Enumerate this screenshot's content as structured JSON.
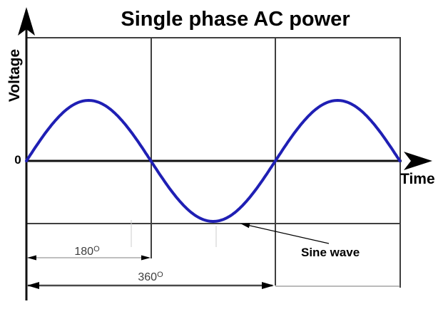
{
  "title": "Single phase AC power",
  "y_axis_label": "Voltage",
  "x_axis_label": "Time",
  "origin_label": "0",
  "labels": {
    "deg180_value": "180",
    "deg180_sup": "O",
    "deg360_value": "360",
    "deg360_sup": "O",
    "sine_wave": "Sine wave"
  },
  "colors": {
    "wave": "#1f1fb4",
    "axis": "#111111",
    "frame": "#3f3f3f",
    "dimension_line": "#999999",
    "dimension_line_heavy": "#4a4a4a",
    "extension_line": "#777777",
    "faint_tick": "#cccccc",
    "arrow": "#000000",
    "text": "#000000"
  },
  "chart_data": {
    "type": "line",
    "title": "Single phase AC power",
    "xlabel": "Time",
    "ylabel": "Voltage",
    "x_unit": "degrees",
    "x_range_deg": [
      0,
      540
    ],
    "ylim": [
      -1,
      1
    ],
    "grid": "vertical gridlines at 180 and 360 degrees only",
    "gridlines_x_deg": [
      180,
      360
    ],
    "legend": "none",
    "series": [
      {
        "name": "Sine wave",
        "function": "y = sin(x)",
        "amplitude": 1,
        "period_deg": 360,
        "points": [
          {
            "x_deg": 0,
            "y": 0
          },
          {
            "x_deg": 90,
            "y": 1
          },
          {
            "x_deg": 180,
            "y": 0
          },
          {
            "x_deg": 270,
            "y": -1
          },
          {
            "x_deg": 360,
            "y": 0
          },
          {
            "x_deg": 450,
            "y": 1
          },
          {
            "x_deg": 540,
            "y": 0
          }
        ]
      }
    ],
    "dimension_annotations": [
      {
        "label": "180°",
        "from_deg": 0,
        "to_deg": 180
      },
      {
        "label": "360°",
        "from_deg": 0,
        "to_deg": 360
      }
    ],
    "callouts": [
      {
        "text": "Sine wave",
        "points_to": "trough of wave at 270 degrees"
      }
    ]
  }
}
